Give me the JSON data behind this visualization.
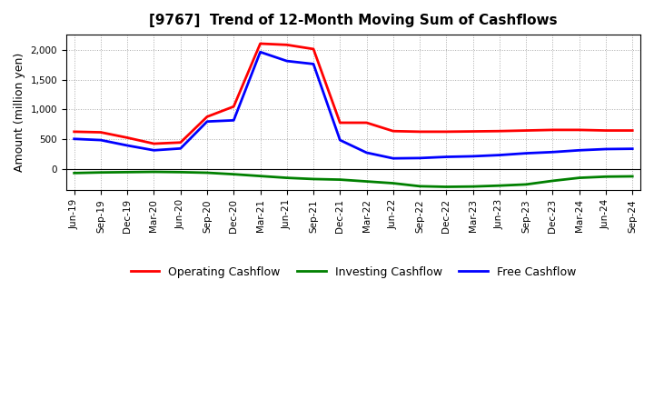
{
  "title": "[9767]  Trend of 12-Month Moving Sum of Cashflows",
  "ylabel": "Amount (million yen)",
  "background_color": "#ffffff",
  "grid_color": "#aaaaaa",
  "x_labels": [
    "Jun-19",
    "Sep-19",
    "Dec-19",
    "Mar-20",
    "Jun-20",
    "Sep-20",
    "Dec-20",
    "Mar-21",
    "Jun-21",
    "Sep-21",
    "Dec-21",
    "Mar-22",
    "Jun-22",
    "Sep-22",
    "Dec-22",
    "Mar-23",
    "Jun-23",
    "Sep-23",
    "Dec-23",
    "Mar-24",
    "Jun-24",
    "Sep-24"
  ],
  "operating": [
    630,
    620,
    530,
    430,
    450,
    880,
    1050,
    2100,
    2080,
    2010,
    780,
    780,
    640,
    630,
    630,
    635,
    640,
    650,
    660,
    660,
    650,
    650
  ],
  "investing": [
    -60,
    -50,
    -45,
    -40,
    -45,
    -55,
    -80,
    -110,
    -140,
    -160,
    -170,
    -200,
    -230,
    -280,
    -290,
    -285,
    -270,
    -250,
    -190,
    -140,
    -120,
    -115
  ],
  "free": [
    510,
    490,
    400,
    320,
    350,
    800,
    820,
    1960,
    1810,
    1760,
    490,
    280,
    185,
    190,
    210,
    220,
    240,
    270,
    290,
    320,
    340,
    345
  ],
  "operating_color": "#ff0000",
  "investing_color": "#008000",
  "free_color": "#0000ff",
  "ylim_min": -350,
  "ylim_max": 2250,
  "yticks": [
    0,
    500,
    1000,
    1500,
    2000
  ],
  "linewidth": 2.0,
  "title_fontsize": 11,
  "ylabel_fontsize": 9,
  "tick_fontsize": 7.5,
  "legend_fontsize": 9
}
